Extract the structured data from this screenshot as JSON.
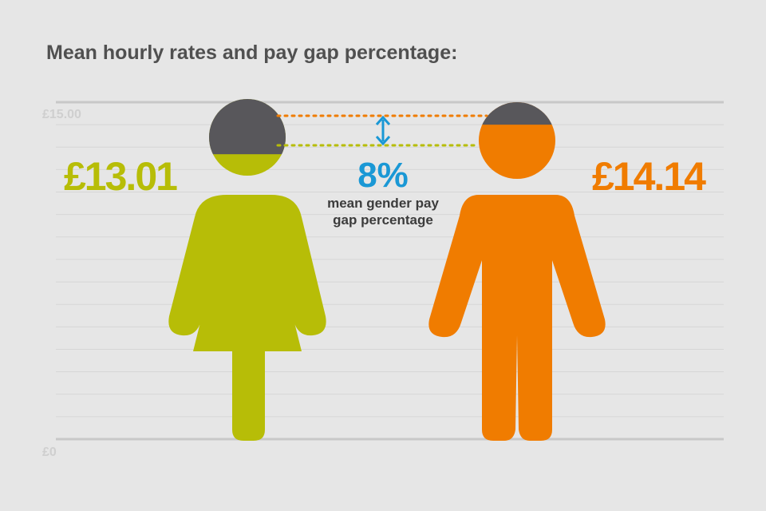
{
  "title": "Mean hourly rates and pay gap percentage:",
  "chart_data": {
    "type": "bar",
    "categories": [
      "Women",
      "Men"
    ],
    "values": [
      13.01,
      14.14
    ],
    "value_labels": [
      "£13.01",
      "£14.14"
    ],
    "ylim": [
      0,
      15
    ],
    "tick_labels": {
      "top": "£15.00",
      "bottom": "£0"
    },
    "gap": {
      "value": 8,
      "label": "8%",
      "caption_line1": "mean gender pay",
      "caption_line2": "gap percentage"
    },
    "grid": true,
    "colors": {
      "women": "#b7bd07",
      "men": "#f07c00",
      "cap": "#58575b",
      "gap": "#1a98d5",
      "gridline": "#cfcfcf",
      "background": "#e6e6e6"
    },
    "icons": [
      "female-figure-icon",
      "male-figure-icon",
      "double-arrow-icon"
    ]
  }
}
